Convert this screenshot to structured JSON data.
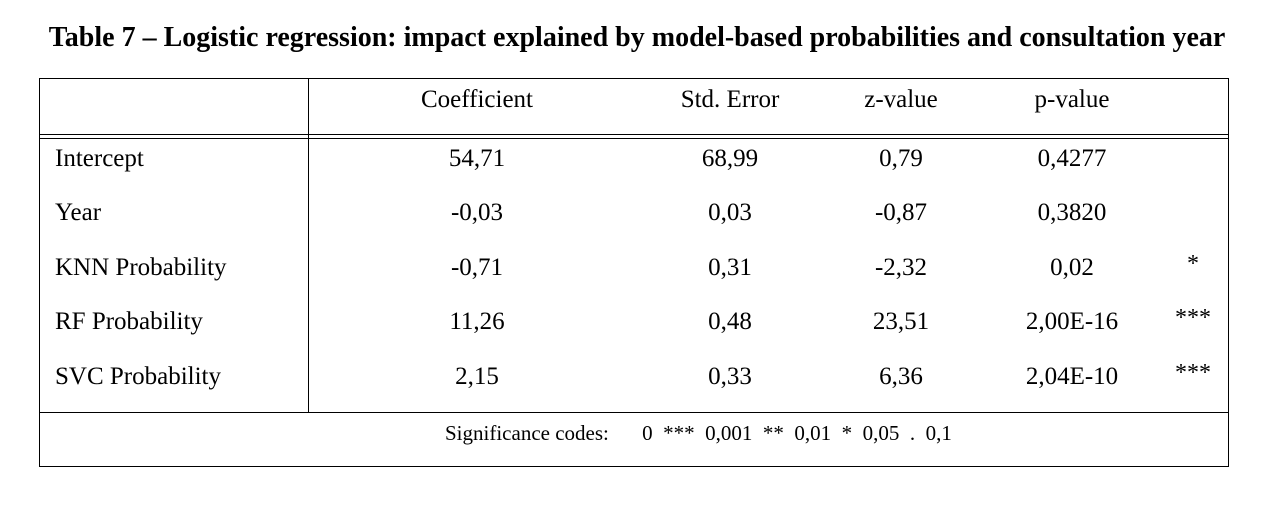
{
  "title": "Table 7 – Logistic regression: impact explained by model-based probabilities and consultation year",
  "table": {
    "headers": [
      "Coefficient",
      "Std. Error",
      "z-value",
      "p-value"
    ],
    "rows": [
      {
        "label": "Intercept",
        "coef": "54,71",
        "se": "68,99",
        "z": "0,79",
        "p": "0,4277",
        "sig": ""
      },
      {
        "label": "Year",
        "coef": "-0,03",
        "se": "0,03",
        "z": "-0,87",
        "p": "0,3820",
        "sig": ""
      },
      {
        "label": "KNN Probability",
        "coef": "-0,71",
        "se": "0,31",
        "z": "-2,32",
        "p": "0,02",
        "sig": "*"
      },
      {
        "label": "RF Probability",
        "coef": "11,26",
        "se": "0,48",
        "z": "23,51",
        "p": "2,00E-16",
        "sig": "***"
      },
      {
        "label": "SVC Probability",
        "coef": "2,15",
        "se": "0,33",
        "z": "6,36",
        "p": "2,04E-10",
        "sig": "***"
      }
    ],
    "footnote": {
      "label": "Significance codes:",
      "codes": "0  ***  0,001  **  0,01  *  0,05  .  0,1"
    }
  }
}
